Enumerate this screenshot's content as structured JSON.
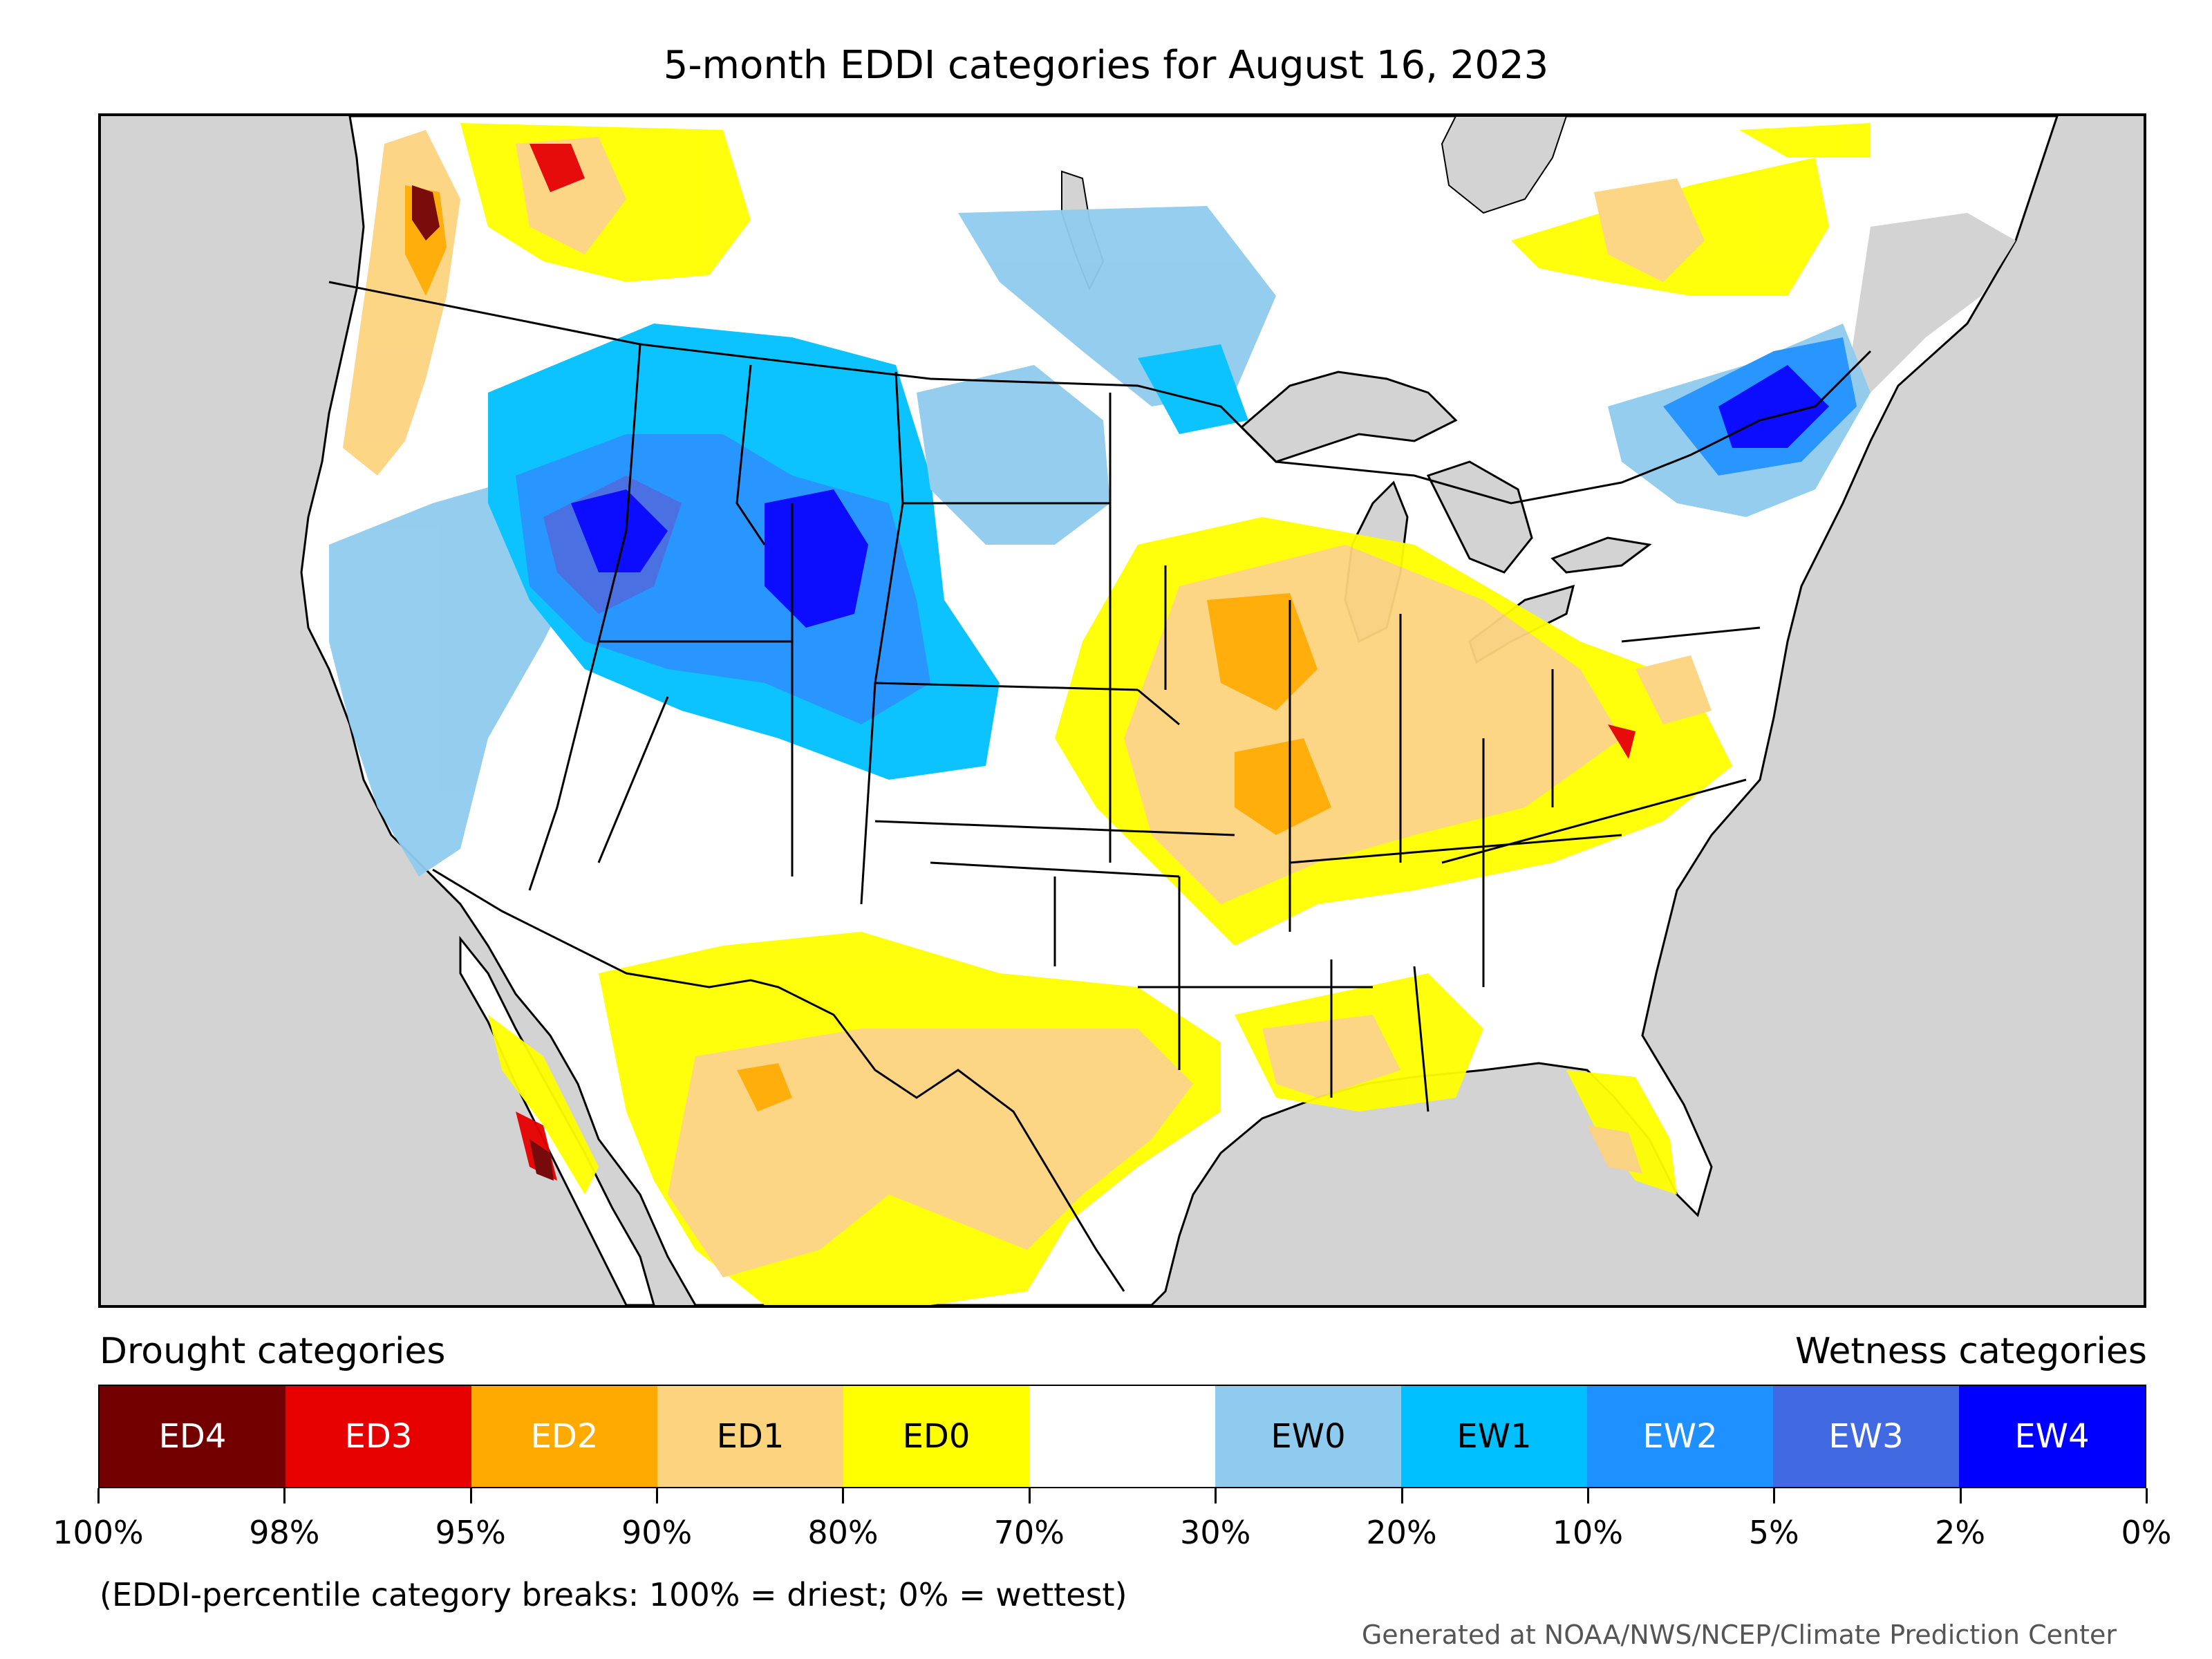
{
  "title": "5-month EDDI categories for August 16, 2023",
  "legend": {
    "left_heading": "Drought categories",
    "right_heading": "Wetness categories",
    "categories": [
      {
        "label": "ED4",
        "color": "#730000",
        "text_color": "#ffffff"
      },
      {
        "label": "ED3",
        "color": "#e60000",
        "text_color": "#ffffff"
      },
      {
        "label": "ED2",
        "color": "#ffaa00",
        "text_color": "#ffffff"
      },
      {
        "label": "ED1",
        "color": "#fcd37f",
        "text_color": "#000000"
      },
      {
        "label": "ED0",
        "color": "#ffff00",
        "text_color": "#000000"
      },
      {
        "label": "",
        "color": "#ffffff",
        "text_color": "#000000"
      },
      {
        "label": "EW0",
        "color": "#8fcbee",
        "text_color": "#000000"
      },
      {
        "label": "EW1",
        "color": "#00c0ff",
        "text_color": "#000000"
      },
      {
        "label": "EW2",
        "color": "#1e90ff",
        "text_color": "#ffffff"
      },
      {
        "label": "EW3",
        "color": "#4169e1",
        "text_color": "#ffffff"
      },
      {
        "label": "EW4",
        "color": "#0000ff",
        "text_color": "#ffffff"
      }
    ],
    "tick_labels": [
      "100%",
      "98%",
      "95%",
      "90%",
      "80%",
      "70%",
      "30%",
      "20%",
      "10%",
      "5%",
      "2%",
      "0%"
    ]
  },
  "note": "(EDDI-percentile category breaks: 100% = driest; 0% = wettest)",
  "credit": "Generated at NOAA/NWS/NCEP/Climate Prediction Center",
  "map": {
    "background_color": "#d3d3d3",
    "land_color": "#ffffff"
  }
}
